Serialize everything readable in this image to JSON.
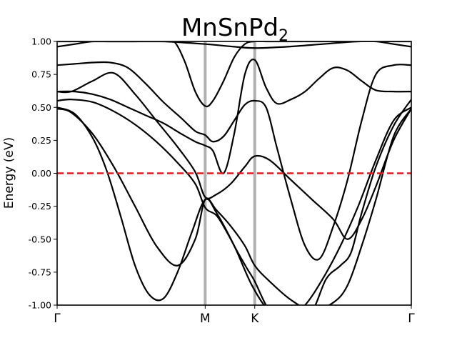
{
  "chart_data": {
    "type": "line",
    "title": {
      "main": "MnSnPd",
      "subscript": "2"
    },
    "xlabel": "",
    "ylabel": "Energy (eV)",
    "xlim": [
      0,
      1
    ],
    "ylim": [
      -1.0,
      1.0
    ],
    "y_ticks": [
      "-1.00",
      "-0.75",
      "-0.50",
      "-0.25",
      "0.00",
      "0.25",
      "0.50",
      "0.75",
      "1.00"
    ],
    "y_tick_values": [
      -1.0,
      -0.75,
      -0.5,
      -0.25,
      0.0,
      0.25,
      0.5,
      0.75,
      1.0
    ],
    "k_points": [
      {
        "label": "Γ",
        "x": 0.0
      },
      {
        "label": "M",
        "x": 0.418
      },
      {
        "label": "K",
        "x": 0.558
      },
      {
        "label": "Γ",
        "x": 1.0
      }
    ],
    "fermi_level": {
      "value": 0.0,
      "color": "#e31a1c",
      "style": "dashed"
    },
    "high_symmetry_line_color": "#b0b0b0",
    "band_color": "#000000",
    "grid": false,
    "series": [
      {
        "x": [
          0,
          0.04,
          0.1,
          0.16,
          0.22,
          0.28,
          0.34,
          0.39,
          0.418,
          0.45,
          0.49,
          0.53,
          0.558,
          0.6,
          0.66,
          0.72,
          0.78,
          0.82,
          0.86,
          0.9,
          0.95,
          1.0
        ],
        "y": [
          0.62,
          0.62,
          0.7,
          0.76,
          0.6,
          0.4,
          0.2,
          0.01,
          -0.18,
          -0.16,
          -0.08,
          0.05,
          0.13,
          0.1,
          -0.05,
          -0.2,
          -0.35,
          -0.5,
          -0.35,
          -0.1,
          0.25,
          0.49
        ]
      },
      {
        "x": [
          0,
          0.04,
          0.1,
          0.16,
          0.22,
          0.28,
          0.34,
          0.39,
          0.418,
          0.45,
          0.48,
          0.51,
          0.538,
          0.558,
          0.6,
          0.66,
          0.72,
          0.76,
          0.8,
          0.83,
          0.86,
          0.9,
          0.95,
          1.0
        ],
        "y": [
          0.55,
          0.56,
          0.54,
          0.47,
          0.37,
          0.24,
          0.08,
          -0.08,
          -0.26,
          -0.32,
          -0.45,
          -0.6,
          -0.73,
          -0.82,
          -1.05,
          -1.25,
          -1.05,
          -0.8,
          -0.7,
          -0.6,
          -0.3,
          0.05,
          0.36,
          0.56
        ]
      },
      {
        "x": [
          0,
          0.04,
          0.1,
          0.16,
          0.22,
          0.28,
          0.34,
          0.39,
          0.418,
          0.45,
          0.49,
          0.53,
          0.558,
          0.6,
          0.66,
          0.72,
          0.78,
          0.82,
          0.86,
          0.9,
          0.95,
          1.0
        ],
        "y": [
          0.49,
          0.46,
          0.3,
          0.05,
          -0.25,
          -0.55,
          -0.7,
          -0.5,
          -0.2,
          -0.28,
          -0.4,
          -0.55,
          -0.7,
          -0.82,
          -0.96,
          -1.04,
          -0.98,
          -0.85,
          -0.55,
          -0.2,
          0.28,
          0.49
        ]
      },
      {
        "x": [
          0,
          0.05,
          0.1,
          0.14,
          0.18,
          0.22,
          0.26,
          0.3,
          0.34,
          0.38,
          0.418,
          0.45,
          0.5,
          0.55,
          0.6,
          0.65,
          0.7,
          0.75,
          0.8,
          0.85,
          0.9,
          0.95,
          1.0
        ],
        "y": [
          0.5,
          0.45,
          0.27,
          0.02,
          -0.33,
          -0.7,
          -0.92,
          -0.95,
          -0.75,
          -0.45,
          -0.2,
          -0.3,
          -0.55,
          -0.85,
          -1.05,
          -1.1,
          -1.0,
          -0.8,
          -0.55,
          -0.25,
          0.1,
          0.4,
          0.5
        ]
      },
      {
        "x": [
          0,
          0.05,
          0.1,
          0.15,
          0.2,
          0.25,
          0.3,
          0.35,
          0.39,
          0.418,
          0.44,
          0.47,
          0.5,
          0.53,
          0.558,
          0.59,
          0.62,
          0.66,
          0.7,
          0.74,
          0.78,
          0.82,
          0.86,
          0.9,
          0.95,
          1.0
        ],
        "y": [
          0.82,
          0.83,
          0.84,
          0.84,
          0.8,
          0.68,
          0.54,
          0.42,
          0.32,
          0.29,
          0.24,
          0.28,
          0.4,
          0.52,
          0.55,
          0.5,
          0.2,
          -0.2,
          -0.55,
          -0.65,
          -0.4,
          -0.05,
          0.4,
          0.75,
          0.82,
          0.82
        ]
      },
      {
        "x": [
          0,
          0.05,
          0.1,
          0.15,
          0.2,
          0.25,
          0.3,
          0.35,
          0.39,
          0.418,
          0.44,
          0.47,
          0.5,
          0.53,
          0.558,
          0.59,
          0.62,
          0.66,
          0.7,
          0.74,
          0.78,
          0.82,
          0.86,
          0.9,
          0.95,
          1.0
        ],
        "y": [
          0.62,
          0.62,
          0.6,
          0.56,
          0.5,
          0.44,
          0.38,
          0.3,
          0.24,
          0.21,
          0.17,
          0.0,
          0.3,
          0.75,
          0.86,
          0.65,
          0.53,
          0.56,
          0.62,
          0.72,
          0.8,
          0.78,
          0.7,
          0.63,
          0.62,
          0.62
        ]
      },
      {
        "x": [
          0,
          0.05,
          0.1,
          0.15,
          0.2,
          0.25,
          0.3,
          0.33,
          0.36,
          0.39,
          0.418,
          0.44,
          0.47,
          0.5,
          0.53,
          0.558,
          0.6,
          0.66,
          0.72,
          0.78,
          0.84,
          0.9,
          0.95,
          1.0
        ],
        "y": [
          0.96,
          0.98,
          1.0,
          1.0,
          1.0,
          1.0,
          1.0,
          1.0,
          0.85,
          0.62,
          0.51,
          0.55,
          0.7,
          0.88,
          0.98,
          1.0,
          1.0,
          1.0,
          1.0,
          1.0,
          1.0,
          1.0,
          0.98,
          0.96
        ]
      },
      {
        "x": [
          0,
          0.1,
          0.2,
          0.3,
          0.418,
          0.5,
          0.558,
          0.65,
          0.75,
          0.85,
          0.95,
          1.0
        ],
        "y": [
          1.0,
          1.0,
          1.0,
          1.0,
          0.98,
          0.96,
          0.95,
          0.96,
          0.98,
          1.0,
          1.0,
          1.0
        ]
      }
    ]
  }
}
